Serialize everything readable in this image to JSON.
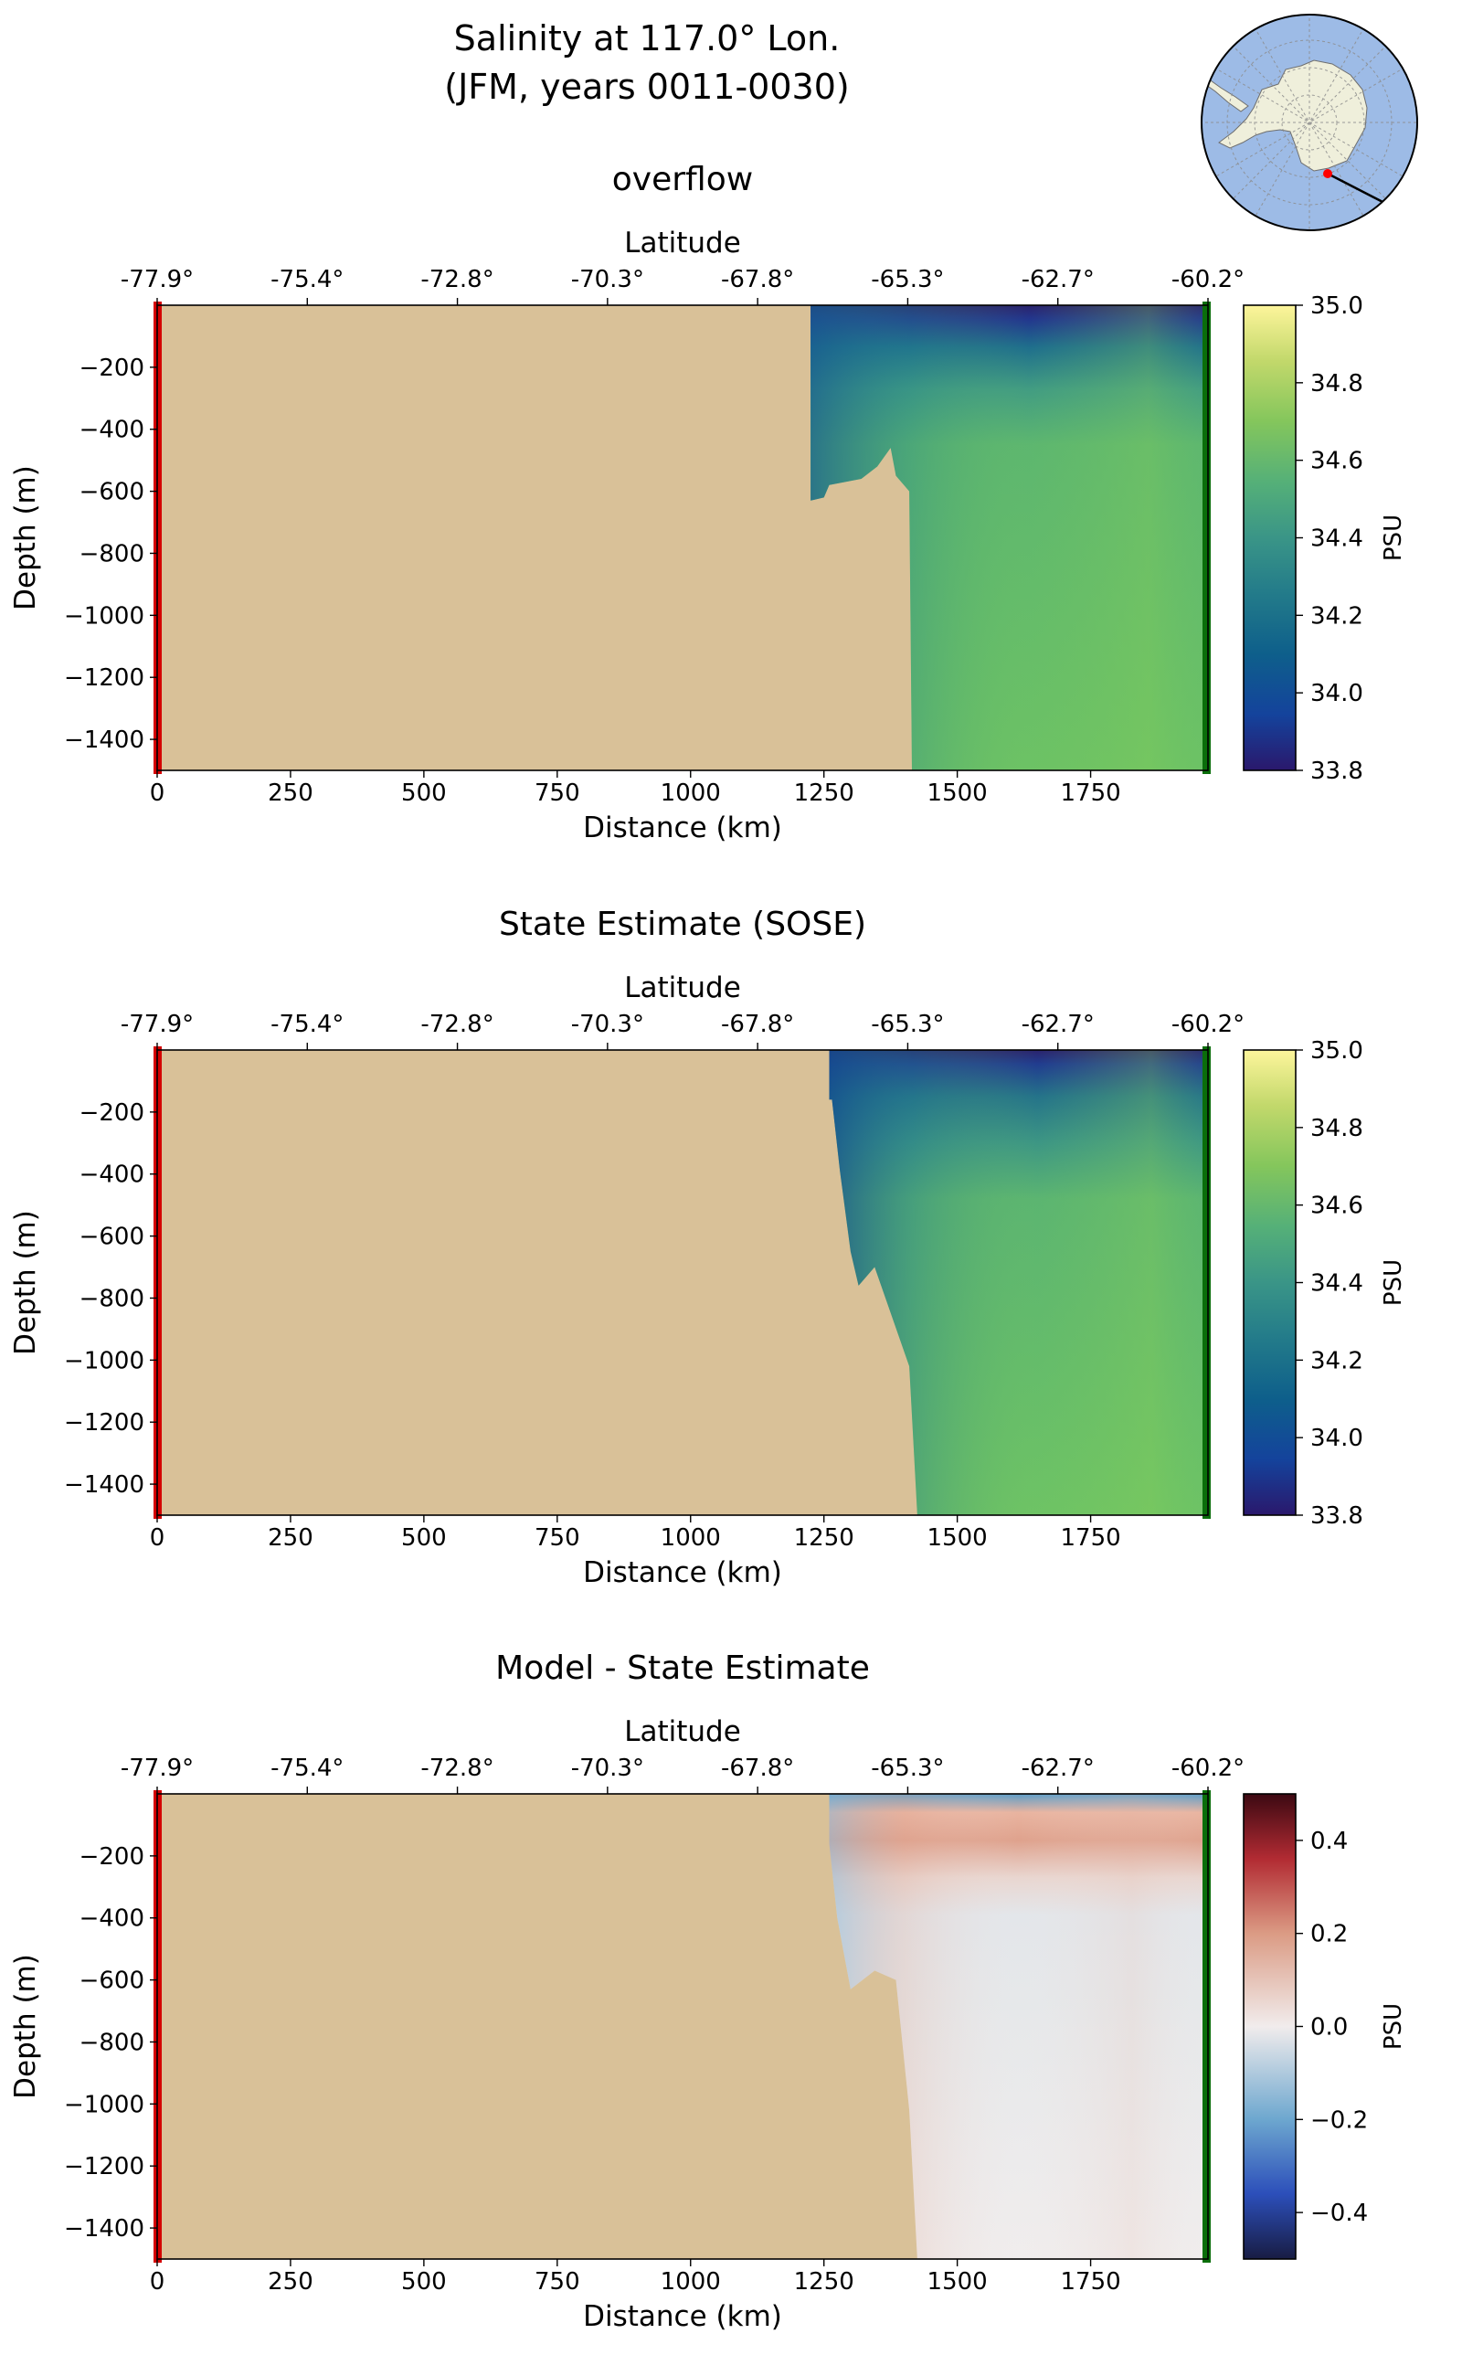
{
  "figure": {
    "title_line1": "Salinity at 117.0° Lon.",
    "title_line2": "(JFM, years 0011-0030)"
  },
  "inset_map": {
    "land_color": "#efefdb",
    "ocean_color": "#9dbbe6",
    "transect_start_color": "#ff0000",
    "transect_end_color": "#008000"
  },
  "colors": {
    "land": "#d9c198",
    "start_marker": "#d40000",
    "end_marker": "#0a6e0a"
  },
  "chart_data": [
    {
      "type": "heatmap",
      "title": "overflow",
      "xlabel": "Distance (km)",
      "ylabel": "Depth (m)",
      "top_xlabel": "Latitude",
      "colorbar_label": "PSU",
      "colormap": "haline",
      "xlim": [
        0,
        1970
      ],
      "ylim": [
        -1500,
        0
      ],
      "xticks": [
        "0",
        "250",
        "500",
        "750",
        "1000",
        "1250",
        "1500",
        "1750"
      ],
      "yticks": [
        "−200",
        "−400",
        "−600",
        "−800",
        "−1000",
        "−1200",
        "−1400"
      ],
      "lat_ticks": [
        "-77.9°",
        "-75.4°",
        "-72.8°",
        "-70.3°",
        "-67.8°",
        "-65.3°",
        "-62.7°",
        "-60.2°"
      ],
      "cbar_ticks": [
        "35.0",
        "34.8",
        "34.6",
        "34.4",
        "34.2",
        "34.0",
        "33.8"
      ],
      "cbar_range": [
        33.8,
        35.0
      ],
      "bathymetry": [
        [
          1225,
          -630
        ],
        [
          1250,
          -620
        ],
        [
          1260,
          -580
        ],
        [
          1320,
          -560
        ],
        [
          1350,
          -520
        ],
        [
          1375,
          -460
        ],
        [
          1385,
          -550
        ],
        [
          1410,
          -600
        ],
        [
          1415,
          -1500
        ]
      ],
      "ocean_start_km": 1225
    },
    {
      "type": "heatmap",
      "title": "State Estimate (SOSE)",
      "xlabel": "Distance (km)",
      "ylabel": "Depth (m)",
      "top_xlabel": "Latitude",
      "colorbar_label": "PSU",
      "colormap": "haline",
      "xlim": [
        0,
        1970
      ],
      "ylim": [
        -1500,
        0
      ],
      "xticks": [
        "0",
        "250",
        "500",
        "750",
        "1000",
        "1250",
        "1500",
        "1750"
      ],
      "yticks": [
        "−200",
        "−400",
        "−600",
        "−800",
        "−1000",
        "−1200",
        "−1400"
      ],
      "lat_ticks": [
        "-77.9°",
        "-75.4°",
        "-72.8°",
        "-70.3°",
        "-67.8°",
        "-65.3°",
        "-62.7°",
        "-60.2°"
      ],
      "cbar_ticks": [
        "35.0",
        "34.8",
        "34.6",
        "34.4",
        "34.2",
        "34.0",
        "33.8"
      ],
      "cbar_range": [
        33.8,
        35.0
      ],
      "bathymetry": [
        [
          1265,
          -160
        ],
        [
          1280,
          -390
        ],
        [
          1300,
          -650
        ],
        [
          1315,
          -760
        ],
        [
          1345,
          -700
        ],
        [
          1410,
          -1020
        ],
        [
          1425,
          -1500
        ]
      ],
      "ocean_start_km": 1260
    },
    {
      "type": "heatmap",
      "title": "Model - State Estimate",
      "xlabel": "Distance (km)",
      "ylabel": "Depth (m)",
      "top_xlabel": "Latitude",
      "colorbar_label": "PSU",
      "colormap": "balance",
      "xlim": [
        0,
        1970
      ],
      "ylim": [
        -1500,
        0
      ],
      "xticks": [
        "0",
        "250",
        "500",
        "750",
        "1000",
        "1250",
        "1500",
        "1750"
      ],
      "yticks": [
        "−200",
        "−400",
        "−600",
        "−800",
        "−1000",
        "−1200",
        "−1400"
      ],
      "lat_ticks": [
        "-77.9°",
        "-75.4°",
        "-72.8°",
        "-70.3°",
        "-67.8°",
        "-65.3°",
        "-62.7°",
        "-60.2°"
      ],
      "cbar_ticks": [
        "0.4",
        "0.2",
        "0.0",
        "−0.2",
        "−0.4"
      ],
      "cbar_range": [
        -0.5,
        0.5
      ],
      "bathymetry": [
        [
          1260,
          -160
        ],
        [
          1275,
          -400
        ],
        [
          1300,
          -630
        ],
        [
          1345,
          -570
        ],
        [
          1385,
          -600
        ],
        [
          1410,
          -1020
        ],
        [
          1425,
          -1500
        ]
      ],
      "ocean_start_km": 1260
    }
  ]
}
